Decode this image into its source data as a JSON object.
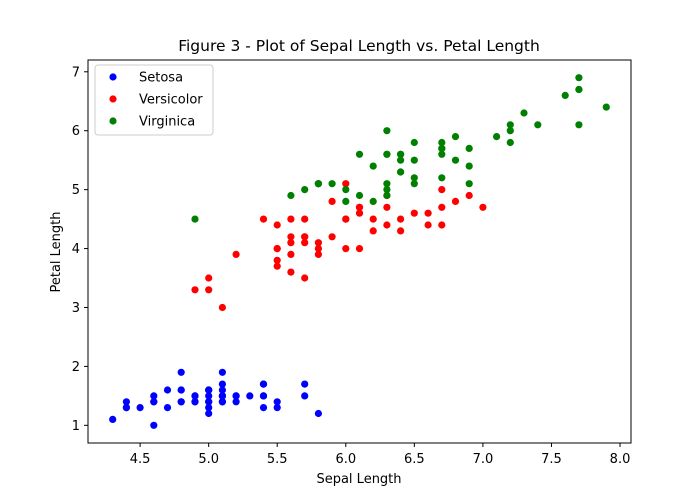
{
  "chart_data": {
    "type": "scatter",
    "title": "Figure 3 - Plot of Sepal Length vs. Petal Length",
    "xlabel": "Sepal Length",
    "ylabel": "Petal Length",
    "xlim": [
      4.12,
      8.08
    ],
    "ylim": [
      0.7,
      7.2
    ],
    "xticks": [
      4.5,
      5.0,
      5.5,
      6.0,
      6.5,
      7.0,
      7.5,
      8.0
    ],
    "xtick_labels": [
      "4.5",
      "5.0",
      "5.5",
      "6.0",
      "6.5",
      "7.0",
      "7.5",
      "8.0"
    ],
    "yticks": [
      1,
      2,
      3,
      4,
      5,
      6,
      7
    ],
    "ytick_labels": [
      "1",
      "2",
      "3",
      "4",
      "5",
      "6",
      "7"
    ],
    "grid": false,
    "legend_position": "top-left",
    "series": [
      {
        "name": "Setosa",
        "color": "#0000ff",
        "points": [
          [
            5.1,
            1.4
          ],
          [
            4.9,
            1.4
          ],
          [
            4.7,
            1.3
          ],
          [
            4.6,
            1.5
          ],
          [
            5.0,
            1.4
          ],
          [
            5.4,
            1.7
          ],
          [
            4.6,
            1.4
          ],
          [
            5.0,
            1.5
          ],
          [
            4.4,
            1.4
          ],
          [
            4.9,
            1.5
          ],
          [
            5.4,
            1.5
          ],
          [
            4.8,
            1.6
          ],
          [
            4.8,
            1.4
          ],
          [
            4.3,
            1.1
          ],
          [
            5.8,
            1.2
          ],
          [
            5.7,
            1.5
          ],
          [
            5.4,
            1.3
          ],
          [
            5.1,
            1.4
          ],
          [
            5.7,
            1.7
          ],
          [
            5.1,
            1.5
          ],
          [
            5.4,
            1.7
          ],
          [
            5.1,
            1.5
          ],
          [
            4.6,
            1.0
          ],
          [
            5.1,
            1.7
          ],
          [
            4.8,
            1.9
          ],
          [
            5.0,
            1.6
          ],
          [
            5.0,
            1.6
          ],
          [
            5.2,
            1.5
          ],
          [
            5.2,
            1.4
          ],
          [
            4.7,
            1.6
          ],
          [
            4.8,
            1.6
          ],
          [
            5.4,
            1.5
          ],
          [
            5.2,
            1.5
          ],
          [
            5.5,
            1.4
          ],
          [
            4.9,
            1.5
          ],
          [
            5.0,
            1.2
          ],
          [
            5.5,
            1.3
          ],
          [
            4.9,
            1.4
          ],
          [
            4.4,
            1.3
          ],
          [
            5.1,
            1.5
          ],
          [
            5.0,
            1.3
          ],
          [
            4.5,
            1.3
          ],
          [
            4.4,
            1.3
          ],
          [
            5.0,
            1.6
          ],
          [
            5.1,
            1.9
          ],
          [
            4.8,
            1.4
          ],
          [
            5.1,
            1.6
          ],
          [
            4.6,
            1.4
          ],
          [
            5.3,
            1.5
          ],
          [
            5.0,
            1.4
          ]
        ]
      },
      {
        "name": "Versicolor",
        "color": "#ff0000",
        "points": [
          [
            7.0,
            4.7
          ],
          [
            6.4,
            4.5
          ],
          [
            6.9,
            4.9
          ],
          [
            5.5,
            4.0
          ],
          [
            6.5,
            4.6
          ],
          [
            5.7,
            4.5
          ],
          [
            6.3,
            4.7
          ],
          [
            4.9,
            3.3
          ],
          [
            6.6,
            4.6
          ],
          [
            5.2,
            3.9
          ],
          [
            5.0,
            3.5
          ],
          [
            5.9,
            4.2
          ],
          [
            6.0,
            4.0
          ],
          [
            6.1,
            4.7
          ],
          [
            5.6,
            3.6
          ],
          [
            6.7,
            4.4
          ],
          [
            5.6,
            4.5
          ],
          [
            5.8,
            4.1
          ],
          [
            6.2,
            4.5
          ],
          [
            5.6,
            3.9
          ],
          [
            5.9,
            4.8
          ],
          [
            6.1,
            4.0
          ],
          [
            6.3,
            4.9
          ],
          [
            6.1,
            4.7
          ],
          [
            6.4,
            4.3
          ],
          [
            6.6,
            4.4
          ],
          [
            6.8,
            4.8
          ],
          [
            6.7,
            5.0
          ],
          [
            6.0,
            4.5
          ],
          [
            5.7,
            3.5
          ],
          [
            5.5,
            3.8
          ],
          [
            5.5,
            3.7
          ],
          [
            5.8,
            3.9
          ],
          [
            6.0,
            5.1
          ],
          [
            5.4,
            4.5
          ],
          [
            6.0,
            4.5
          ],
          [
            6.7,
            4.7
          ],
          [
            6.3,
            4.4
          ],
          [
            5.6,
            4.1
          ],
          [
            5.5,
            4.0
          ],
          [
            5.5,
            4.4
          ],
          [
            6.1,
            4.6
          ],
          [
            5.8,
            4.0
          ],
          [
            5.0,
            3.3
          ],
          [
            5.6,
            4.2
          ],
          [
            5.7,
            4.2
          ],
          [
            5.7,
            4.2
          ],
          [
            6.2,
            4.3
          ],
          [
            5.1,
            3.0
          ],
          [
            5.7,
            4.1
          ]
        ]
      },
      {
        "name": "Virginica",
        "color": "#008000",
        "points": [
          [
            6.3,
            6.0
          ],
          [
            5.8,
            5.1
          ],
          [
            7.1,
            5.9
          ],
          [
            6.3,
            5.6
          ],
          [
            6.5,
            5.8
          ],
          [
            7.6,
            6.6
          ],
          [
            4.9,
            4.5
          ],
          [
            7.3,
            6.3
          ],
          [
            6.7,
            5.8
          ],
          [
            7.2,
            6.1
          ],
          [
            6.5,
            5.1
          ],
          [
            6.4,
            5.3
          ],
          [
            6.8,
            5.5
          ],
          [
            5.7,
            5.0
          ],
          [
            5.8,
            5.1
          ],
          [
            6.4,
            5.3
          ],
          [
            6.5,
            5.5
          ],
          [
            7.7,
            6.7
          ],
          [
            7.7,
            6.9
          ],
          [
            6.0,
            5.0
          ],
          [
            6.9,
            5.7
          ],
          [
            5.6,
            4.9
          ],
          [
            7.7,
            6.7
          ],
          [
            6.3,
            4.9
          ],
          [
            6.7,
            5.7
          ],
          [
            7.2,
            6.0
          ],
          [
            6.2,
            4.8
          ],
          [
            6.1,
            4.9
          ],
          [
            6.4,
            5.6
          ],
          [
            7.2,
            5.8
          ],
          [
            7.4,
            6.1
          ],
          [
            7.9,
            6.4
          ],
          [
            6.4,
            5.6
          ],
          [
            6.3,
            5.1
          ],
          [
            6.1,
            5.6
          ],
          [
            7.7,
            6.1
          ],
          [
            6.3,
            5.6
          ],
          [
            6.4,
            5.5
          ],
          [
            6.0,
            4.8
          ],
          [
            6.9,
            5.4
          ],
          [
            6.7,
            5.6
          ],
          [
            6.9,
            5.1
          ],
          [
            5.8,
            5.1
          ],
          [
            6.8,
            5.9
          ],
          [
            6.7,
            5.7
          ],
          [
            6.7,
            5.2
          ],
          [
            6.3,
            5.0
          ],
          [
            6.5,
            5.2
          ],
          [
            6.2,
            5.4
          ],
          [
            5.9,
            5.1
          ]
        ]
      }
    ]
  }
}
